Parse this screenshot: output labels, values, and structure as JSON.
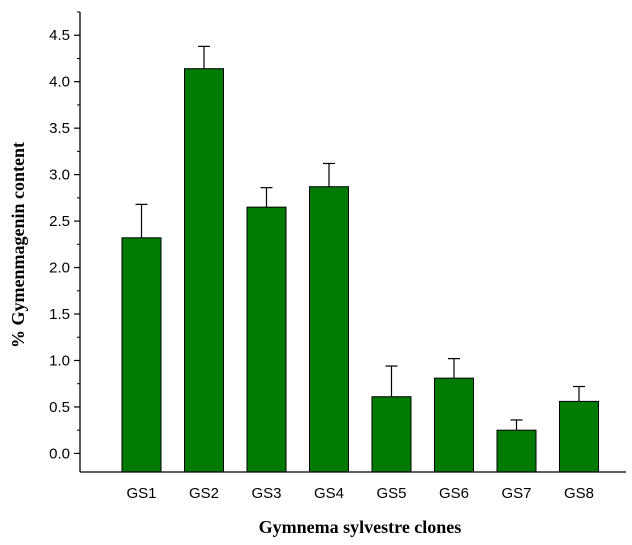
{
  "chart_data": {
    "type": "bar",
    "title": "",
    "xlabel": "Gymnema sylvestre clones",
    "ylabel": "% Gymenmagenin content",
    "categories": [
      "GS1",
      "GS2",
      "GS3",
      "GS4",
      "GS5",
      "GS6",
      "GS7",
      "GS8"
    ],
    "series": [
      {
        "values": [
          2.32,
          4.14,
          2.65,
          2.87,
          0.61,
          0.81,
          0.25,
          0.56
        ],
        "error_plus": [
          0.36,
          0.24,
          0.21,
          0.25,
          0.33,
          0.21,
          0.11,
          0.16
        ]
      }
    ],
    "ylim": [
      -0.2,
      4.75
    ],
    "yticks": [
      0.0,
      0.5,
      1.0,
      1.5,
      2.0,
      2.5,
      3.0,
      3.5,
      4.0,
      4.5
    ],
    "ytick_labels": [
      "0.0",
      "0.5",
      "1.0",
      "1.5",
      "2.0",
      "2.5",
      "3.0",
      "3.5",
      "4.0",
      "4.5"
    ],
    "bar_color": "#007a00",
    "grid": false,
    "legend": "none"
  }
}
